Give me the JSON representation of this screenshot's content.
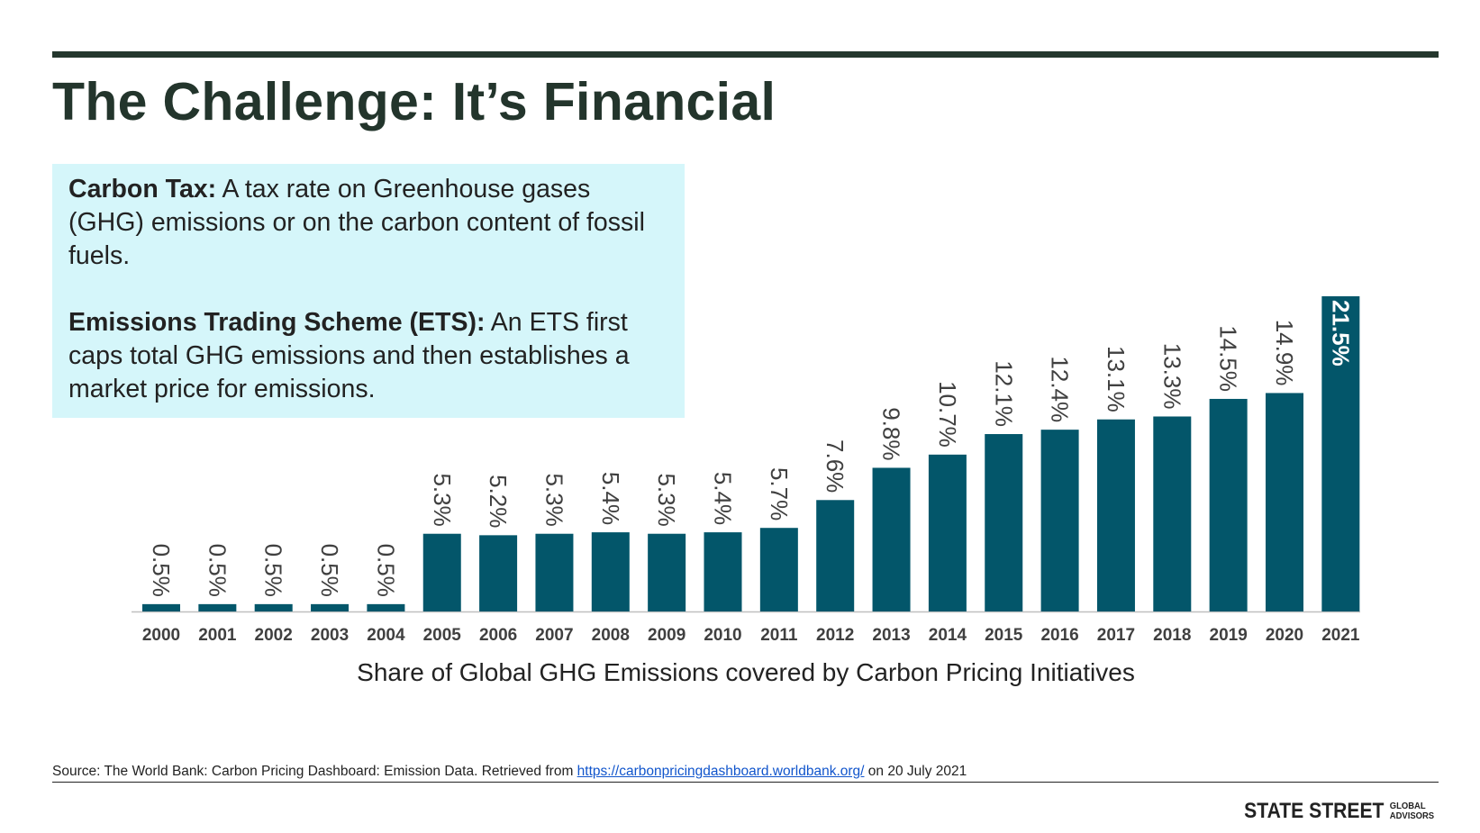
{
  "slide": {
    "title": "The Challenge: It’s Financial",
    "definitions": [
      {
        "term": "Carbon Tax:",
        "text": " A tax rate on Greenhouse gases (GHG) emissions or on the carbon content of fossil fuels."
      },
      {
        "term": "Emissions Trading Scheme (ETS):",
        "text": " An ETS first caps total GHG emissions and then establishes a market price for emissions."
      }
    ],
    "source": {
      "prefix": "Source: The World Bank: Carbon Pricing Dashboard: Emission Data. Retrieved from ",
      "link": "https://carbonpricingdashboard.worldbank.org/",
      "suffix": " on 20 July 2021"
    },
    "logo": {
      "main": "STATE STREET",
      "line1": "GLOBAL",
      "line2": "ADVISORS"
    }
  },
  "colors": {
    "title": "#23352c",
    "rule": "#24372d",
    "box": "#d5f6fa",
    "bar": "#03566a",
    "bar_label": "#404040",
    "highlight_label": "#ffffff",
    "axis": "#bfbfbf",
    "tick_label": "#404040"
  },
  "chart_data": {
    "type": "bar",
    "title": "",
    "xlabel": "Share of Global GHG Emissions covered by Carbon Pricing Initiatives",
    "ylabel": "",
    "ylim": [
      0,
      21.5
    ],
    "grid": false,
    "categories": [
      "2000",
      "2001",
      "2002",
      "2003",
      "2004",
      "2005",
      "2006",
      "2007",
      "2008",
      "2009",
      "2010",
      "2011",
      "2012",
      "2013",
      "2014",
      "2015",
      "2016",
      "2017",
      "2018",
      "2019",
      "2020",
      "2021"
    ],
    "values": [
      0.5,
      0.5,
      0.5,
      0.5,
      0.5,
      5.3,
      5.2,
      5.3,
      5.4,
      5.3,
      5.4,
      5.7,
      7.6,
      9.8,
      10.7,
      12.1,
      12.4,
      13.1,
      13.3,
      14.5,
      14.9,
      21.5
    ],
    "labels": [
      "0.5%",
      "0.5%",
      "0.5%",
      "0.5%",
      "0.5%",
      "5.3%",
      "5.2%",
      "5.3%",
      "5.4%",
      "5.3%",
      "5.4%",
      "5.7%",
      "7.6%",
      "9.8%",
      "10.7%",
      "12.1%",
      "12.4%",
      "13.1%",
      "13.3%",
      "14.5%",
      "14.9%",
      "21.5%"
    ],
    "highlight_index": 21
  }
}
